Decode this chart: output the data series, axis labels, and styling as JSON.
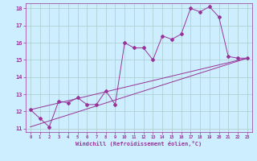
{
  "xlabel": "Windchill (Refroidissement éolien,°C)",
  "bg_color": "#cceeff",
  "grid_color": "#aacccc",
  "line_color": "#993399",
  "xlim": [
    -0.5,
    23.5
  ],
  "ylim": [
    10.8,
    18.3
  ],
  "xticks": [
    0,
    1,
    2,
    3,
    4,
    5,
    6,
    7,
    8,
    9,
    10,
    11,
    12,
    13,
    14,
    15,
    16,
    17,
    18,
    19,
    20,
    21,
    22,
    23
  ],
  "yticks": [
    11,
    12,
    13,
    14,
    15,
    16,
    17,
    18
  ],
  "line1_x": [
    0,
    1,
    2,
    3,
    4,
    5,
    6,
    7,
    8,
    9,
    10,
    11,
    12,
    13,
    14,
    15,
    16,
    17,
    18,
    19,
    20,
    21,
    22,
    23
  ],
  "line1_y": [
    12.1,
    11.6,
    11.1,
    12.6,
    12.5,
    12.8,
    12.4,
    12.4,
    13.2,
    12.4,
    16.0,
    15.7,
    15.7,
    15.0,
    16.4,
    16.2,
    16.5,
    18.0,
    17.8,
    18.1,
    17.5,
    15.2,
    15.1,
    15.1
  ],
  "line2_x": [
    0,
    23
  ],
  "line2_y": [
    12.1,
    15.1
  ],
  "line3_x": [
    0,
    23
  ],
  "line3_y": [
    11.1,
    15.1
  ]
}
